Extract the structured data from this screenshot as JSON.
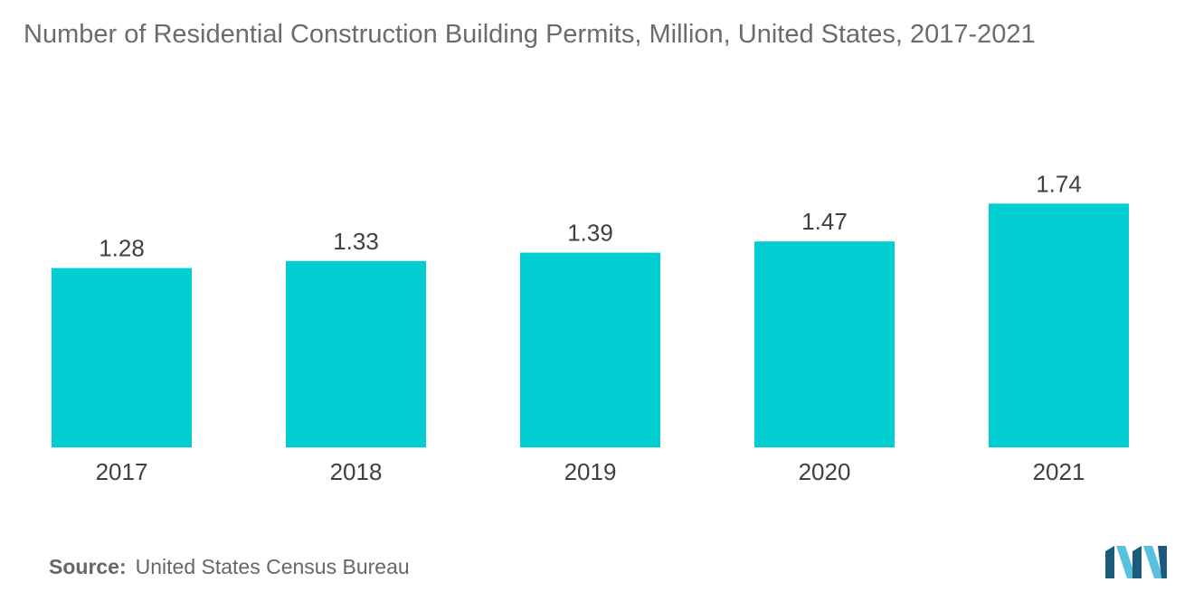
{
  "chart_data": {
    "type": "bar",
    "title": "Number of Residential Construction Building Permits, Million, United States, 2017-2021",
    "categories": [
      "2017",
      "2018",
      "2019",
      "2020",
      "2021"
    ],
    "values": [
      1.28,
      1.33,
      1.39,
      1.47,
      1.74
    ],
    "value_labels": [
      "1.28",
      "1.33",
      "1.39",
      "1.47",
      "1.74"
    ],
    "xlabel": "",
    "ylabel": "",
    "grid": false,
    "legend": "none",
    "bar_color": "#00CED1"
  },
  "source": {
    "label": "Source:",
    "text": "United States Census Bureau"
  },
  "logo": {
    "icon": "mordor-intelligence-logo-icon",
    "color_dark": "#1B5A7A",
    "color_light": "#5BC0DE"
  }
}
